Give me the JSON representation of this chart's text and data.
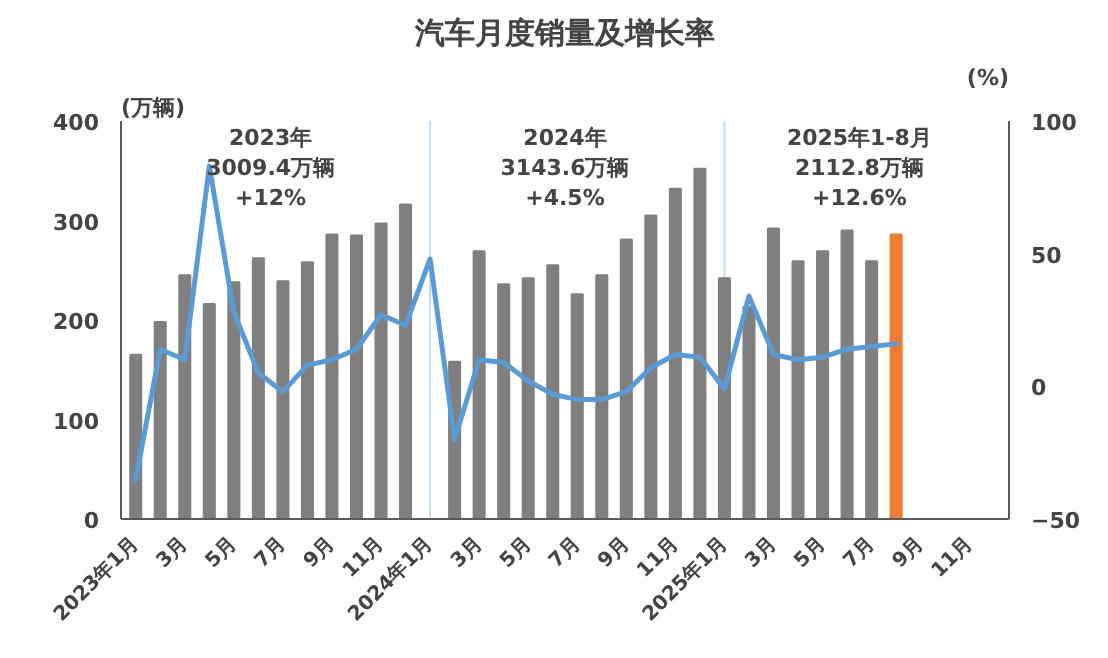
{
  "chart_data": {
    "type": "bar",
    "title": "汽车月度销量及增长率",
    "ylabel": "(万辆)",
    "y2label": "(%)",
    "categories": [
      "2023年1月",
      null,
      "3月",
      null,
      "5月",
      null,
      "7月",
      null,
      "9月",
      null,
      "11月",
      null,
      "2024年1月",
      null,
      "3月",
      null,
      "5月",
      null,
      "7月",
      null,
      "9月",
      null,
      "11月",
      null,
      "2025年1月",
      null,
      "3月",
      null,
      "5月",
      null,
      "7月",
      null,
      "9月",
      null,
      "11月",
      null
    ],
    "series": [
      {
        "colors": [
          "#7f7f7f",
          "#7f7f7f",
          "#7f7f7f",
          "#7f7f7f",
          "#7f7f7f",
          "#7f7f7f",
          "#7f7f7f",
          "#7f7f7f",
          "#7f7f7f",
          "#7f7f7f",
          "#7f7f7f",
          "#7f7f7f",
          "#7f7f7f",
          "#7f7f7f",
          "#7f7f7f",
          "#7f7f7f",
          "#7f7f7f",
          "#7f7f7f",
          "#7f7f7f",
          "#7f7f7f",
          "#7f7f7f",
          "#7f7f7f",
          "#7f7f7f",
          "#7f7f7f",
          "#7f7f7f",
          "#7f7f7f",
          "#7f7f7f",
          "#7f7f7f",
          "#7f7f7f",
          "#7f7f7f",
          "#7f7f7f",
          "#ed7d31",
          "#7f7f7f",
          "#7f7f7f",
          "#7f7f7f",
          "#7f7f7f"
        ],
        "values": [
          165,
          198,
          245,
          216,
          238,
          262,
          239,
          258,
          286,
          285,
          297,
          316,
          null,
          158,
          269,
          236,
          242,
          255,
          226,
          245,
          281,
          305,
          332,
          352,
          242,
          213,
          292,
          259,
          269,
          290,
          259,
          286,
          null,
          null,
          null,
          null
        ]
      },
      {
        "type": "line",
        "axis": "y2",
        "color": "#5b9bd5",
        "values": [
          -35,
          14,
          10,
          83,
          28,
          5,
          -2,
          8,
          10,
          14,
          27,
          23,
          48,
          -20,
          10,
          9,
          2,
          -3,
          -5,
          -5,
          -2,
          7,
          12,
          11,
          -1,
          34,
          12,
          10,
          11,
          14,
          15,
          16,
          null,
          null,
          null,
          null
        ]
      }
    ],
    "ylim": [
      0,
      400
    ],
    "yticks": [
      0,
      100,
      200,
      300,
      400
    ],
    "y2lim": [
      -50,
      100
    ],
    "y2ticks": [
      -50,
      0,
      50,
      100
    ],
    "ref_lines": [
      {
        "axis": "x",
        "value": "2024年1月",
        "color": "#c5dcf0"
      },
      {
        "axis": "x",
        "value": "2025年1月",
        "color": "#c5dcf0"
      }
    ],
    "annotations": [
      "2023年\n3009.4万辆\n+12%",
      "2024年\n3143.6万辆\n+4.5%",
      "2025年1-8月\n2112.8万辆\n+12.6%"
    ],
    "grid": false,
    "marker": "none",
    "line_style": "solid"
  }
}
